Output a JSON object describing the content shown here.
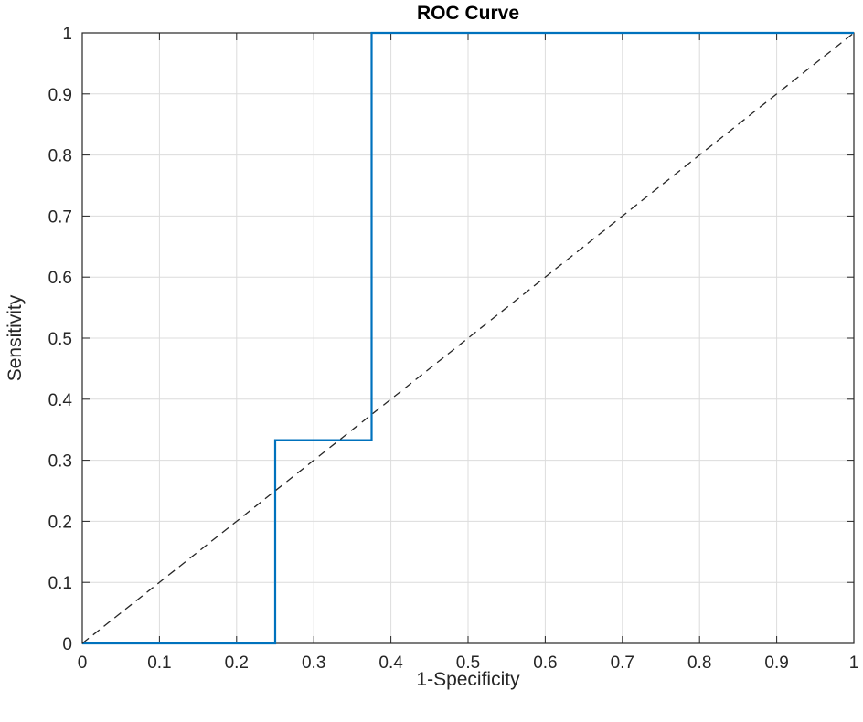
{
  "chart_data": {
    "type": "line",
    "title": "ROC Curve",
    "xlabel": "1-Specificity",
    "ylabel": "Sensitivity",
    "xlim": [
      0,
      1
    ],
    "ylim": [
      0,
      1
    ],
    "xticks": [
      0,
      0.1,
      0.2,
      0.3,
      0.4,
      0.5,
      0.6,
      0.7,
      0.8,
      0.9,
      1
    ],
    "xtick_labels": [
      "0",
      "0.1",
      "0.2",
      "0.3",
      "0.4",
      "0.5",
      "0.6",
      "0.7",
      "0.8",
      "0.9",
      "1"
    ],
    "yticks": [
      0,
      0.1,
      0.2,
      0.3,
      0.4,
      0.5,
      0.6,
      0.7,
      0.8,
      0.9,
      1
    ],
    "ytick_labels": [
      "0",
      "0.1",
      "0.2",
      "0.3",
      "0.4",
      "0.5",
      "0.6",
      "0.7",
      "0.8",
      "0.9",
      "1"
    ],
    "grid": true,
    "series": [
      {
        "style": "solid",
        "color": "#0072BD",
        "x": [
          0,
          0.25,
          0.25,
          0.375,
          0.375,
          1
        ],
        "y": [
          0,
          0,
          0.333,
          0.333,
          1,
          1
        ]
      },
      {
        "style": "dashed",
        "color": "#262626",
        "x": [
          0,
          1
        ],
        "y": [
          0,
          1
        ]
      }
    ]
  }
}
